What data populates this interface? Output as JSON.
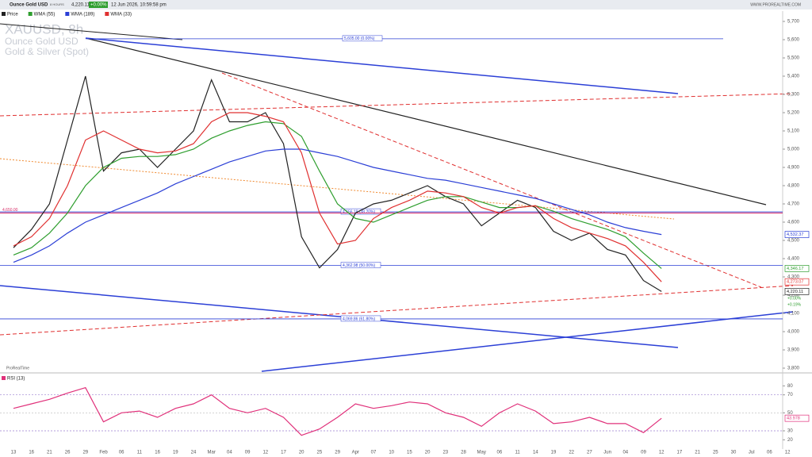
{
  "header": {
    "instrument": "Ounce Gold USD",
    "timeframe": "8 HOURS",
    "last": "4,220.11",
    "change": "+0.00%",
    "datetime": "12 Jun 2026, 10:59:58 pm",
    "site": "WWW.PROREALTIME.COM"
  },
  "watermark": {
    "symbol": "XAUUSD, 8h",
    "name": "Ounce Gold USD",
    "market": "Gold & Silver (Spot)"
  },
  "brand": "ProRealTime",
  "chart_data": [
    {
      "type": "line",
      "categories": [
        "13",
        "16",
        "21",
        "26",
        "29",
        "Feb",
        "06",
        "11",
        "16",
        "19",
        "24",
        "Mar",
        "04",
        "09",
        "12",
        "17",
        "20",
        "25",
        "29",
        "Apr",
        "07",
        "10",
        "15",
        "20",
        "23",
        "28",
        "May",
        "06",
        "11",
        "14",
        "19",
        "22",
        "27",
        "Jun",
        "04",
        "09",
        "12",
        "17",
        "21",
        "25",
        "30",
        "Jul",
        "06",
        "12"
      ],
      "series": [
        {
          "name": "Price",
          "color": "#222222",
          "values": [
            4460,
            4560,
            4700,
            5050,
            5400,
            4880,
            4980,
            5000,
            4900,
            5000,
            5100,
            5380,
            5150,
            5150,
            5200,
            5030,
            4520,
            4350,
            4450,
            4650,
            4700,
            4720,
            4760,
            4800,
            4740,
            4700,
            4580,
            4650,
            4720,
            4680,
            4550,
            4500,
            4540,
            4450,
            4420,
            4280,
            4220.11,
            null,
            null,
            null,
            null,
            null,
            null,
            null
          ],
          "last_label": "4,220.11"
        },
        {
          "name": "WMA (55)",
          "color": "#2e9e2e",
          "values": [
            4420,
            4460,
            4540,
            4650,
            4800,
            4900,
            4950,
            4960,
            4960,
            4970,
            5000,
            5060,
            5100,
            5130,
            5150,
            5140,
            5070,
            4880,
            4700,
            4620,
            4600,
            4640,
            4680,
            4720,
            4740,
            4740,
            4710,
            4680,
            4680,
            4690,
            4660,
            4620,
            4590,
            4560,
            4520,
            4430,
            4346.17,
            null,
            null,
            null,
            null,
            null,
            null,
            null
          ],
          "last_label": "4,346.17"
        },
        {
          "name": "WMA (189)",
          "color": "#2b3fd6",
          "values": [
            4380,
            4420,
            4470,
            4540,
            4600,
            4640,
            4680,
            4720,
            4760,
            4810,
            4850,
            4890,
            4930,
            4960,
            4990,
            5000,
            5000,
            4980,
            4960,
            4930,
            4900,
            4880,
            4860,
            4840,
            4830,
            4810,
            4790,
            4770,
            4750,
            4730,
            4700,
            4670,
            4640,
            4600,
            4570,
            4550,
            4532.37,
            null,
            null,
            null,
            null,
            null,
            null,
            null
          ],
          "last_label": "4,532.37"
        },
        {
          "name": "WMA (33)",
          "color": "#e03030",
          "values": [
            4470,
            4520,
            4620,
            4800,
            5050,
            5100,
            5050,
            5000,
            4980,
            4990,
            5030,
            5150,
            5200,
            5200,
            5180,
            5150,
            4980,
            4650,
            4480,
            4500,
            4620,
            4680,
            4720,
            4770,
            4760,
            4740,
            4680,
            4650,
            4680,
            4690,
            4620,
            4570,
            4540,
            4510,
            4470,
            4380,
            4273.07,
            null,
            null,
            null,
            null,
            null,
            null,
            null
          ],
          "last_label": "4,273.07"
        }
      ],
      "ylim": [
        3800,
        5700
      ],
      "yticks": [
        {
          "value": 3800,
          "label": "3,800"
        },
        {
          "value": 3900,
          "label": "3,900"
        },
        {
          "value": 4000,
          "label": "4,000"
        },
        {
          "value": 4100,
          "label": "4,100"
        },
        {
          "value": 4200,
          "label": "4,200"
        },
        {
          "value": 4300,
          "label": "4,300"
        },
        {
          "value": 4400,
          "label": "4,400"
        },
        {
          "value": 4500,
          "label": "4,500"
        },
        {
          "value": 4600,
          "label": "4,600"
        },
        {
          "value": 4700,
          "label": "4,700"
        },
        {
          "value": 4800,
          "label": "4,800"
        },
        {
          "value": 4900,
          "label": "4,900"
        },
        {
          "value": 5000,
          "label": "5,000"
        },
        {
          "value": 5100,
          "label": "5,100"
        },
        {
          "value": 5200,
          "label": "5,200"
        },
        {
          "value": 5300,
          "label": "5,300"
        },
        {
          "value": 5400,
          "label": "5,400"
        },
        {
          "value": 5500,
          "label": "5,500"
        },
        {
          "value": 5600,
          "label": "5,600"
        },
        {
          "value": 5700,
          "label": "5,700"
        }
      ],
      "levels": [
        {
          "value": 5605,
          "label": "5,605.00 (0.00%)"
        },
        {
          "value": 4656.19,
          "label": "4,656.19 (38.20%)"
        },
        {
          "value": 4362.98,
          "label": "4,362.98 (50.00%)"
        },
        {
          "value": 4069.86,
          "label": "4,069.86 (61.80%)"
        }
      ],
      "marker": {
        "value": 4650,
        "label": "4,650.00"
      },
      "changes": [
        "+0.00%",
        "+0.19%"
      ]
    },
    {
      "type": "line",
      "series": [
        {
          "name": "RSI (13)",
          "color": "#e0307a",
          "values": [
            55,
            60,
            65,
            72,
            78,
            40,
            50,
            52,
            45,
            55,
            60,
            70,
            55,
            50,
            55,
            45,
            25,
            32,
            45,
            60,
            55,
            58,
            62,
            60,
            50,
            45,
            35,
            50,
            60,
            52,
            38,
            40,
            45,
            38,
            38,
            28,
            43.978,
            null,
            null,
            null,
            null,
            null,
            null,
            null
          ],
          "last_label": "43.978"
        }
      ],
      "ylim": [
        15,
        90
      ],
      "yticks": [
        20,
        30,
        50,
        70,
        80
      ]
    }
  ]
}
